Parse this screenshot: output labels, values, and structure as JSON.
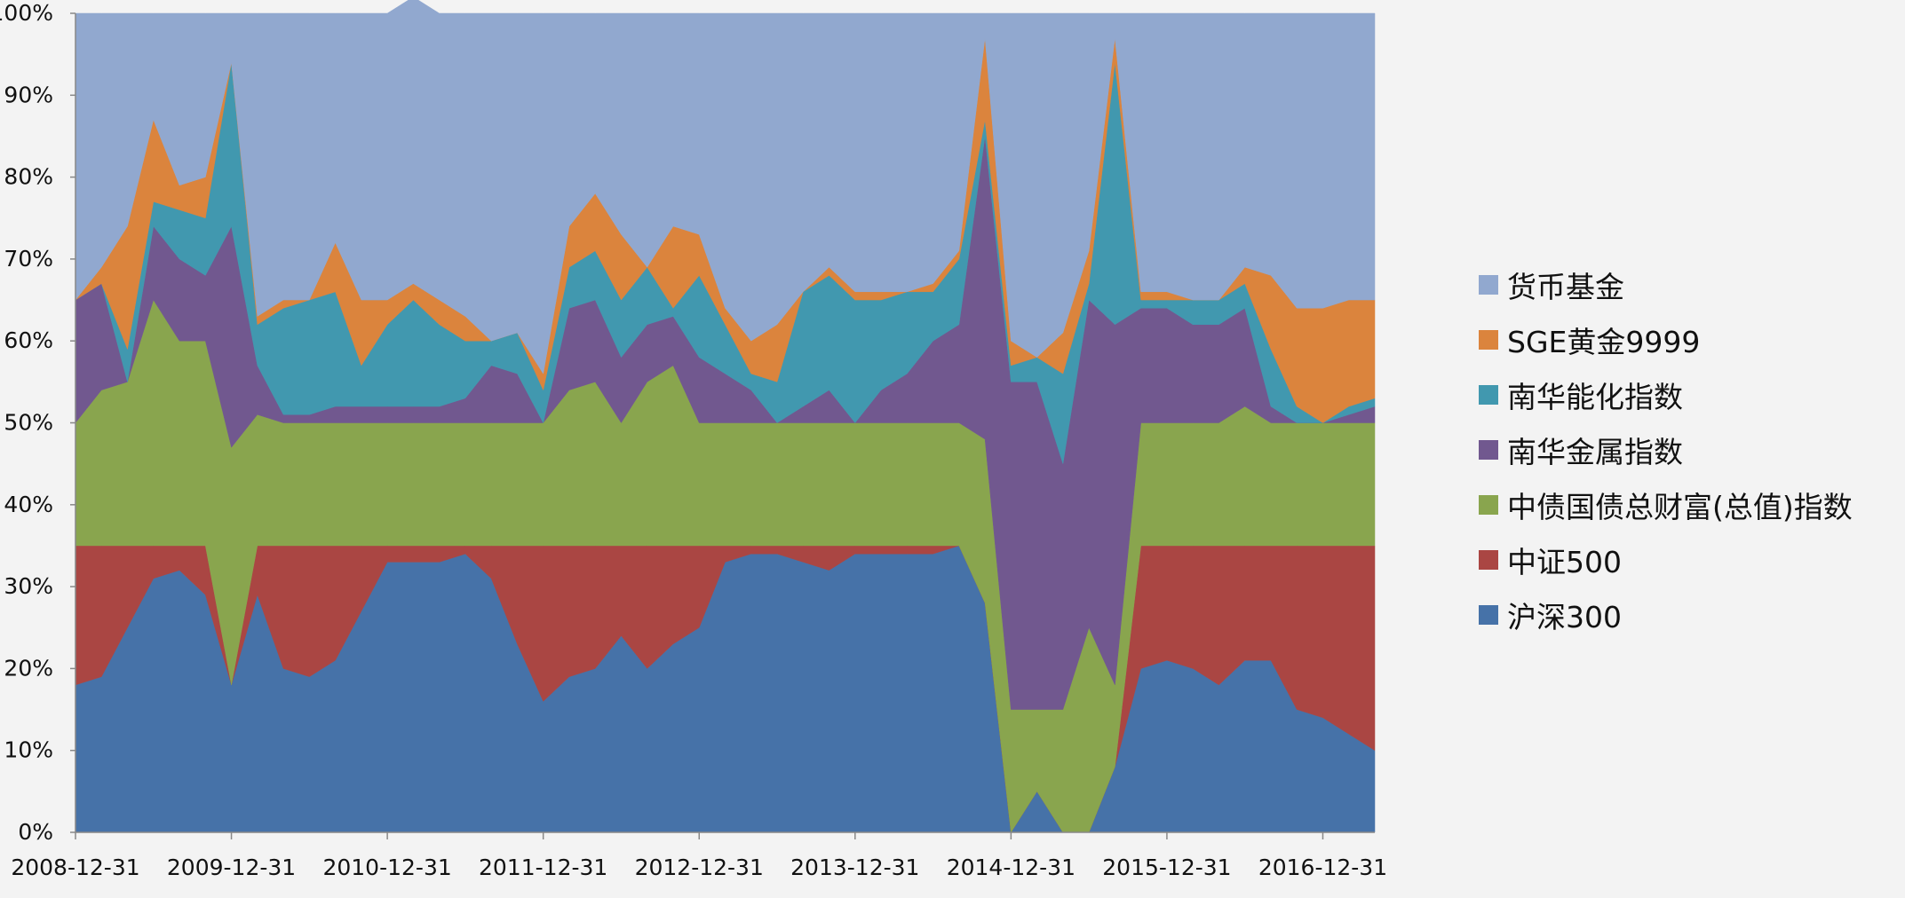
{
  "chart_data": {
    "type": "area",
    "stacked": "percent",
    "title": "",
    "xlabel": "",
    "ylabel": "",
    "ylim": [
      0,
      1
    ],
    "y_tick_labels": [
      "0%",
      "10%",
      "20%",
      "30%",
      "40%",
      "50%",
      "60%",
      "70%",
      "80%",
      "90%",
      "100%"
    ],
    "x_tick_labels": [
      "2008-12-31",
      "2009-12-31",
      "2010-12-31",
      "2011-12-31",
      "2012-12-31",
      "2013-12-31",
      "2014-12-31",
      "2015-12-31",
      "2016-12-31"
    ],
    "legend_position": "right",
    "grid": false,
    "x": [
      "2008-12",
      "2009-02",
      "2009-04",
      "2009-06",
      "2009-08",
      "2009-10",
      "2009-12",
      "2010-02",
      "2010-04",
      "2010-06",
      "2010-08",
      "2010-10",
      "2010-12",
      "2011-02",
      "2011-04",
      "2011-06",
      "2011-08",
      "2011-10",
      "2011-12",
      "2012-02",
      "2012-04",
      "2012-06",
      "2012-08",
      "2012-10",
      "2012-12",
      "2013-02",
      "2013-04",
      "2013-06",
      "2013-08",
      "2013-10",
      "2013-12",
      "2014-02",
      "2014-04",
      "2014-06",
      "2014-08",
      "2014-10",
      "2014-12",
      "2015-02",
      "2015-04",
      "2015-06",
      "2015-08",
      "2015-10",
      "2015-12",
      "2016-02",
      "2016-04",
      "2016-06",
      "2016-08",
      "2016-10",
      "2016-12",
      "2017-02",
      "2017-04"
    ],
    "series": [
      {
        "name": "沪深300",
        "color": "#4672a8",
        "values": [
          0.18,
          0.19,
          0.25,
          0.31,
          0.32,
          0.29,
          0.18,
          0.29,
          0.2,
          0.19,
          0.21,
          0.27,
          0.33,
          0.33,
          0.33,
          0.34,
          0.31,
          0.23,
          0.16,
          0.19,
          0.2,
          0.24,
          0.2,
          0.23,
          0.25,
          0.33,
          0.34,
          0.34,
          0.33,
          0.32,
          0.34,
          0.34,
          0.34,
          0.34,
          0.35,
          0.28,
          0.0,
          0.05,
          0.0,
          0.0,
          0.08,
          0.2,
          0.21,
          0.2,
          0.18,
          0.21,
          0.21,
          0.15,
          0.14,
          0.12,
          0.1
        ]
      },
      {
        "name": "中证500",
        "color": "#aa4643",
        "values": [
          0.17,
          0.16,
          0.1,
          0.04,
          0.03,
          0.06,
          0.0,
          0.06,
          0.15,
          0.16,
          0.14,
          0.08,
          0.02,
          0.02,
          0.02,
          0.01,
          0.04,
          0.12,
          0.19,
          0.16,
          0.15,
          0.11,
          0.15,
          0.12,
          0.1,
          0.02,
          0.01,
          0.01,
          0.02,
          0.03,
          0.01,
          0.01,
          0.01,
          0.01,
          0.0,
          0.0,
          0.0,
          0.0,
          0.0,
          0.0,
          0.0,
          0.15,
          0.14,
          0.15,
          0.17,
          0.14,
          0.14,
          0.2,
          0.21,
          0.23,
          0.25
        ]
      },
      {
        "name": "中债国债总财富(总值)指数",
        "color": "#89a54e",
        "values": [
          0.15,
          0.19,
          0.2,
          0.3,
          0.25,
          0.25,
          0.29,
          0.16,
          0.15,
          0.15,
          0.15,
          0.15,
          0.15,
          0.15,
          0.15,
          0.15,
          0.15,
          0.15,
          0.15,
          0.19,
          0.2,
          0.15,
          0.2,
          0.22,
          0.15,
          0.15,
          0.15,
          0.15,
          0.15,
          0.15,
          0.15,
          0.15,
          0.15,
          0.15,
          0.15,
          0.2,
          0.15,
          0.1,
          0.15,
          0.25,
          0.1,
          0.15,
          0.15,
          0.15,
          0.15,
          0.17,
          0.15,
          0.15,
          0.15,
          0.15,
          0.15
        ]
      },
      {
        "name": "南华金属指数",
        "color": "#71588f",
        "values": [
          0.15,
          0.13,
          0.0,
          0.09,
          0.1,
          0.08,
          0.27,
          0.06,
          0.01,
          0.01,
          0.02,
          0.02,
          0.02,
          0.02,
          0.02,
          0.03,
          0.07,
          0.06,
          0.0,
          0.1,
          0.1,
          0.08,
          0.07,
          0.06,
          0.08,
          0.06,
          0.04,
          0.0,
          0.02,
          0.04,
          0.0,
          0.04,
          0.06,
          0.1,
          0.12,
          0.37,
          0.4,
          0.4,
          0.3,
          0.4,
          0.44,
          0.14,
          0.14,
          0.12,
          0.12,
          0.12,
          0.02,
          0.0,
          0.0,
          0.01,
          0.02
        ]
      },
      {
        "name": "南华能化指数",
        "color": "#4198af",
        "values": [
          0.0,
          0.0,
          0.04,
          0.03,
          0.06,
          0.07,
          0.2,
          0.05,
          0.13,
          0.14,
          0.14,
          0.05,
          0.1,
          0.13,
          0.1,
          0.07,
          0.03,
          0.05,
          0.04,
          0.05,
          0.06,
          0.07,
          0.07,
          0.01,
          0.1,
          0.06,
          0.02,
          0.05,
          0.14,
          0.14,
          0.15,
          0.11,
          0.1,
          0.06,
          0.08,
          0.02,
          0.02,
          0.03,
          0.11,
          0.02,
          0.32,
          0.01,
          0.01,
          0.03,
          0.03,
          0.03,
          0.07,
          0.02,
          0.0,
          0.01,
          0.01
        ]
      },
      {
        "name": "SGE黄金9999",
        "color": "#db843d",
        "values": [
          0.0,
          0.02,
          0.15,
          0.1,
          0.03,
          0.05,
          0.0,
          0.01,
          0.01,
          0.0,
          0.06,
          0.08,
          0.03,
          0.02,
          0.03,
          0.03,
          0.0,
          0.0,
          0.02,
          0.05,
          0.07,
          0.08,
          0.0,
          0.1,
          0.05,
          0.02,
          0.04,
          0.07,
          0.0,
          0.01,
          0.01,
          0.01,
          0.0,
          0.01,
          0.01,
          0.1,
          0.03,
          0.0,
          0.05,
          0.04,
          0.03,
          0.01,
          0.01,
          0.0,
          0.0,
          0.02,
          0.09,
          0.12,
          0.14,
          0.13,
          0.12
        ]
      },
      {
        "name": "货币基金",
        "color": "#91a8cf",
        "values": [
          0.35,
          0.31,
          0.26,
          0.13,
          0.21,
          0.2,
          0.06,
          0.37,
          0.35,
          0.35,
          0.28,
          0.35,
          0.35,
          0.35,
          0.35,
          0.37,
          0.4,
          0.39,
          0.44,
          0.26,
          0.22,
          0.27,
          0.31,
          0.26,
          0.27,
          0.36,
          0.4,
          0.38,
          0.34,
          0.31,
          0.34,
          0.34,
          0.34,
          0.33,
          0.29,
          0.03,
          0.4,
          0.42,
          0.39,
          0.29,
          0.03,
          0.34,
          0.34,
          0.35,
          0.35,
          0.31,
          0.32,
          0.36,
          0.36,
          0.35,
          0.35
        ]
      }
    ]
  }
}
